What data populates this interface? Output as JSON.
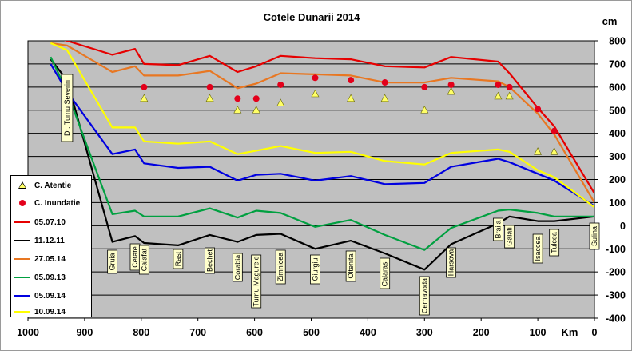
{
  "chart_data": {
    "type": "line",
    "title": "Cotele Dunarii 2014",
    "xlabel": "Km",
    "ylabel": "cm",
    "x_reversed": true,
    "xlim": [
      1000,
      0
    ],
    "ylim": [
      -400,
      800
    ],
    "x_ticks": [
      1000,
      900,
      800,
      700,
      600,
      500,
      400,
      300,
      200,
      100,
      0
    ],
    "y_ticks": [
      800,
      700,
      600,
      500,
      400,
      300,
      200,
      100,
      0,
      -100,
      -200,
      -300,
      -400
    ],
    "plot_background": "#c0c0c0",
    "grid": "horizontal",
    "legend_position": "bottom-left",
    "stations": [
      {
        "name": "Dr. Turnu Severin",
        "km": 931
      },
      {
        "name": "Gruia",
        "km": 851
      },
      {
        "name": "Cetate",
        "km": 811
      },
      {
        "name": "Calafat",
        "km": 795
      },
      {
        "name": "Rast",
        "km": 735
      },
      {
        "name": "Bechet",
        "km": 679
      },
      {
        "name": "Corabia",
        "km": 630
      },
      {
        "name": "Turnu Magurele",
        "km": 597
      },
      {
        "name": "Zimnicea",
        "km": 554
      },
      {
        "name": "Giurgiu",
        "km": 493
      },
      {
        "name": "Oltenita",
        "km": 430
      },
      {
        "name": "Calarasi",
        "km": 370
      },
      {
        "name": "Cernavoda",
        "km": 300
      },
      {
        "name": "Harsova",
        "km": 253
      },
      {
        "name": "Braila",
        "km": 170
      },
      {
        "name": "Galati",
        "km": 150
      },
      {
        "name": "Isaccea",
        "km": 100
      },
      {
        "name": "Tulcea",
        "km": 71
      },
      {
        "name": "Sulina",
        "km": 0
      }
    ],
    "x": [
      960,
      931,
      851,
      811,
      795,
      735,
      679,
      630,
      597,
      554,
      493,
      430,
      370,
      300,
      253,
      170,
      150,
      100,
      71,
      0
    ],
    "series": [
      {
        "name": "05.07.10",
        "color": "#e60000",
        "values": [
          820,
          800,
          740,
          765,
          700,
          695,
          735,
          665,
          690,
          735,
          725,
          720,
          690,
          685,
          730,
          710,
          660,
          510,
          430,
          140
        ]
      },
      {
        "name": "11.12.11",
        "color": "#000000",
        "values": [
          720,
          630,
          -70,
          -45,
          -75,
          -85,
          -40,
          -70,
          -40,
          -35,
          -100,
          -65,
          -120,
          -190,
          -80,
          10,
          40,
          20,
          20,
          40
        ]
      },
      {
        "name": "27.05.14",
        "color": "#e87722",
        "values": [
          790,
          780,
          665,
          690,
          650,
          650,
          670,
          595,
          615,
          660,
          655,
          650,
          620,
          620,
          640,
          625,
          600,
          485,
          395,
          100
        ]
      },
      {
        "name": "05.09.13",
        "color": "#00a040",
        "values": [
          730,
          580,
          50,
          65,
          40,
          40,
          75,
          35,
          65,
          55,
          -5,
          25,
          -40,
          -105,
          -10,
          65,
          70,
          55,
          40,
          40
        ]
      },
      {
        "name": "05.09.14",
        "color": "#0000e0",
        "values": [
          700,
          580,
          310,
          330,
          270,
          250,
          255,
          195,
          220,
          225,
          195,
          215,
          180,
          185,
          255,
          290,
          275,
          225,
          195,
          85
        ]
      },
      {
        "name": "10.09.14",
        "color": "#ffff00",
        "values": [
          790,
          760,
          425,
          425,
          365,
          355,
          365,
          310,
          325,
          345,
          315,
          320,
          280,
          265,
          315,
          330,
          320,
          240,
          210,
          80
        ]
      }
    ],
    "markers": [
      {
        "name": "C. Atentie",
        "shape": "triangle",
        "color": "#ffff66",
        "points": [
          {
            "x": 795,
            "y": 550
          },
          {
            "x": 679,
            "y": 550
          },
          {
            "x": 630,
            "y": 500
          },
          {
            "x": 597,
            "y": 500
          },
          {
            "x": 554,
            "y": 530
          },
          {
            "x": 493,
            "y": 570
          },
          {
            "x": 430,
            "y": 550
          },
          {
            "x": 370,
            "y": 550
          },
          {
            "x": 300,
            "y": 500
          },
          {
            "x": 253,
            "y": 580
          },
          {
            "x": 170,
            "y": 560
          },
          {
            "x": 150,
            "y": 560
          },
          {
            "x": 100,
            "y": 320
          },
          {
            "x": 71,
            "y": 320
          }
        ]
      },
      {
        "name": "C. Inundatie",
        "shape": "circle",
        "color": "#e3001b",
        "points": [
          {
            "x": 795,
            "y": 600
          },
          {
            "x": 679,
            "y": 600
          },
          {
            "x": 630,
            "y": 550
          },
          {
            "x": 597,
            "y": 550
          },
          {
            "x": 554,
            "y": 610
          },
          {
            "x": 493,
            "y": 640
          },
          {
            "x": 430,
            "y": 630
          },
          {
            "x": 370,
            "y": 620
          },
          {
            "x": 300,
            "y": 600
          },
          {
            "x": 253,
            "y": 610
          },
          {
            "x": 170,
            "y": 610
          },
          {
            "x": 150,
            "y": 600
          },
          {
            "x": 100,
            "y": 505
          },
          {
            "x": 71,
            "y": 410
          }
        ]
      }
    ]
  }
}
